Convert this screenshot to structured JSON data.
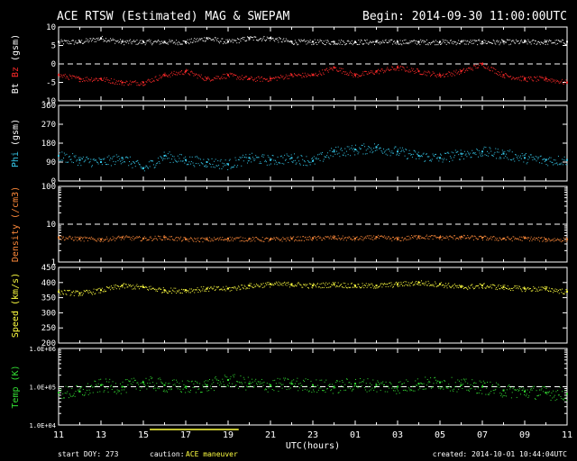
{
  "header": {
    "title": "ACE RTSW (Estimated) MAG & SWEPAM",
    "begin": "Begin: 2014-09-30 11:00:00UTC"
  },
  "footer": {
    "start_doy": "start DOY: 273",
    "caution_label": "caution:",
    "caution_value": "ACE maneuver",
    "created": "created: 2014-10-01 10:44:04UTC"
  },
  "colors": {
    "background": "#000000",
    "frame": "#ffffff",
    "bt": "#ffffff",
    "bz": "#ff2a2a",
    "phi": "#35c6e8",
    "density": "#ff8a3a",
    "speed": "#ffff40",
    "temp": "#33dd33",
    "caution": "#ffff40"
  },
  "chart_data": {
    "type": "scatter",
    "x_axis": {
      "label": "UTC(hours)",
      "range_hours": [
        0,
        24
      ],
      "tick_labels": [
        "11",
        "13",
        "15",
        "17",
        "19",
        "21",
        "23",
        "01",
        "03",
        "05",
        "07",
        "09",
        "11"
      ]
    },
    "caution_interval_hours": [
      4.3,
      8.5
    ],
    "panels": [
      {
        "id": "mag",
        "ylabel_parts": [
          "Bt",
          "Bz",
          "(gsm)"
        ],
        "ylim": [
          -10,
          10
        ],
        "yticks": [
          -10,
          -5,
          0,
          5,
          10
        ],
        "tick_labels": [
          "-10",
          "-5",
          "0",
          "5",
          "10"
        ],
        "ref_line": 0,
        "series": [
          {
            "name": "Bt",
            "x": [
              0,
              1,
              2,
              3,
              4,
              5,
              6,
              7,
              8,
              9,
              10,
              11,
              12,
              13,
              14,
              15,
              16,
              17,
              18,
              19,
              20,
              21,
              22,
              23,
              24
            ],
            "y": [
              6,
              6,
              7,
              6,
              6,
              6,
              6,
              7,
              6,
              7,
              7,
              6,
              6,
              6,
              6,
              6,
              6,
              6,
              6,
              6,
              6,
              6,
              6,
              6,
              6
            ]
          },
          {
            "name": "Bz",
            "x": [
              0,
              1,
              2,
              3,
              4,
              5,
              6,
              7,
              8,
              9,
              10,
              11,
              12,
              13,
              14,
              15,
              16,
              17,
              18,
              19,
              20,
              21,
              22,
              23,
              24
            ],
            "y": [
              -3,
              -4,
              -4,
              -5,
              -5,
              -3,
              -2,
              -4,
              -3,
              -4,
              -4,
              -3,
              -3,
              -1,
              -3,
              -2,
              -1,
              -2,
              -3,
              -2,
              0,
              -3,
              -4,
              -4,
              -5
            ]
          }
        ]
      },
      {
        "id": "phi",
        "ylabel_parts": [
          "Phi",
          "(gsm)"
        ],
        "ylim": [
          0,
          360
        ],
        "yticks": [
          0,
          90,
          180,
          270,
          360
        ],
        "tick_labels": [
          "0",
          "90",
          "180",
          "270",
          "360"
        ],
        "series": [
          {
            "name": "Phi",
            "x": [
              0,
              1,
              2,
              3,
              4,
              5,
              6,
              7,
              8,
              9,
              10,
              11,
              12,
              13,
              14,
              15,
              16,
              17,
              18,
              19,
              20,
              21,
              22,
              23,
              24
            ],
            "y": [
              120,
              100,
              90,
              110,
              60,
              120,
              100,
              90,
              80,
              110,
              100,
              110,
              95,
              140,
              150,
              160,
              140,
              120,
              110,
              130,
              140,
              130,
              110,
              100,
              100
            ]
          }
        ]
      },
      {
        "id": "density",
        "ylabel_parts": [
          "Density",
          "(/cm3)"
        ],
        "log": true,
        "ylim": [
          1,
          100
        ],
        "yticks": [
          1,
          10,
          100
        ],
        "tick_labels": [
          "1",
          "10",
          "100"
        ],
        "ref_line": 10,
        "series": [
          {
            "name": "Density",
            "x": [
              0,
              1,
              2,
              3,
              4,
              5,
              6,
              7,
              8,
              9,
              10,
              11,
              12,
              13,
              14,
              15,
              16,
              17,
              18,
              19,
              20,
              21,
              22,
              23,
              24
            ],
            "y": [
              4.5,
              4.2,
              4,
              4.5,
              4.2,
              4.5,
              4,
              4,
              4.2,
              4.1,
              4,
              4.2,
              4.3,
              4.5,
              4.2,
              4.6,
              4.1,
              4.8,
              4.5,
              4.6,
              4.4,
              4.2,
              4.3,
              4,
              4
            ]
          }
        ]
      },
      {
        "id": "speed",
        "ylabel_parts": [
          "Speed",
          "(km/s)"
        ],
        "ylim": [
          200,
          450
        ],
        "yticks": [
          200,
          250,
          300,
          350,
          400,
          450
        ],
        "tick_labels": [
          "200",
          "250",
          "300",
          "350",
          "400",
          "450"
        ],
        "series": [
          {
            "name": "Speed",
            "x": [
              0,
              1,
              2,
              3,
              4,
              5,
              6,
              7,
              8,
              9,
              10,
              11,
              12,
              13,
              14,
              15,
              16,
              17,
              18,
              19,
              20,
              21,
              22,
              23,
              24
            ],
            "y": [
              370,
              365,
              375,
              390,
              385,
              375,
              375,
              380,
              380,
              390,
              395,
              395,
              390,
              395,
              390,
              390,
              395,
              400,
              395,
              385,
              390,
              385,
              380,
              380,
              370
            ]
          }
        ]
      },
      {
        "id": "temp",
        "ylabel_parts": [
          "Temp",
          "(K)"
        ],
        "log": true,
        "ylim": [
          10000,
          1000000
        ],
        "yticks": [
          10000,
          100000,
          1000000
        ],
        "tick_labels": [
          "1.0E+04",
          "1.0E+05",
          "1.0E+06"
        ],
        "ref_line": 100000,
        "series": [
          {
            "name": "Temp",
            "x": [
              0,
              1,
              2,
              3,
              4,
              5,
              6,
              7,
              8,
              9,
              10,
              11,
              12,
              13,
              14,
              15,
              16,
              17,
              18,
              19,
              20,
              21,
              22,
              23,
              24
            ],
            "y": [
              70000,
              75000,
              110000,
              100000,
              130000,
              110000,
              100000,
              110000,
              150000,
              120000,
              110000,
              120000,
              110000,
              100000,
              120000,
              110000,
              100000,
              120000,
              130000,
              110000,
              100000,
              80000,
              75000,
              70000,
              65000
            ]
          }
        ]
      }
    ]
  }
}
